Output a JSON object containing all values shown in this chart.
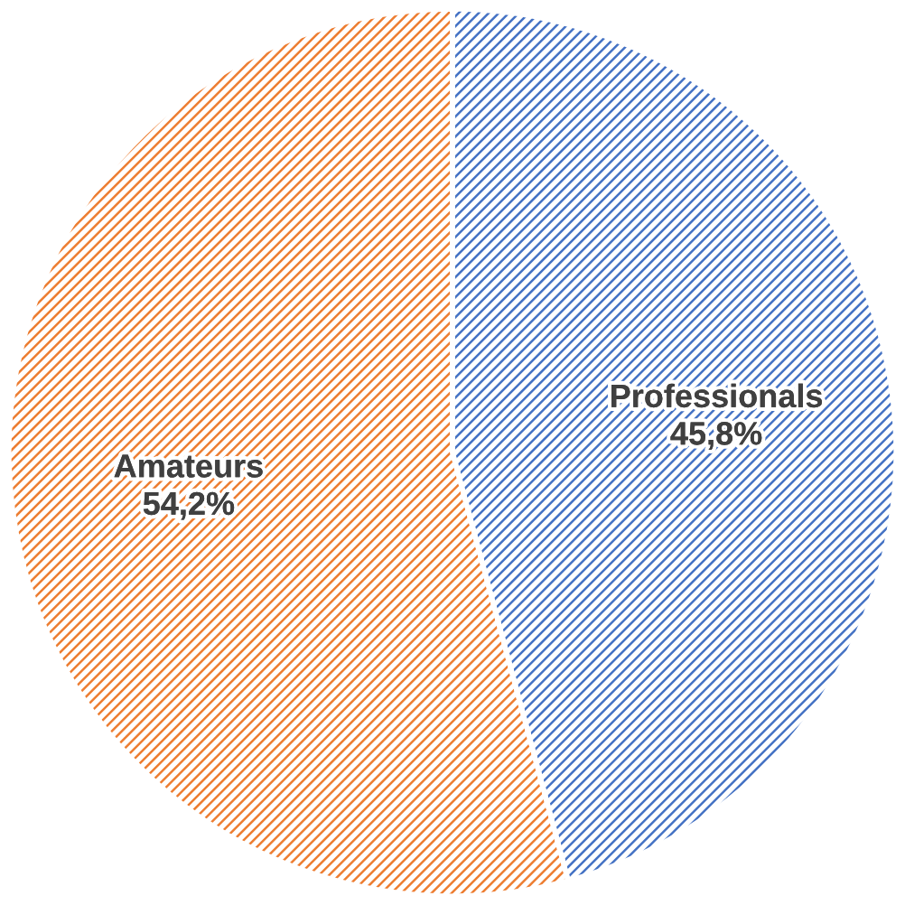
{
  "chart_data": {
    "type": "pie",
    "categories": [
      "Professionals",
      "Amateurs"
    ],
    "values": [
      45.8,
      54.2
    ],
    "colors": [
      "#4472c4",
      "#ed7d31"
    ],
    "value_labels": [
      "45,8%",
      "54,2%"
    ],
    "legend": false
  }
}
